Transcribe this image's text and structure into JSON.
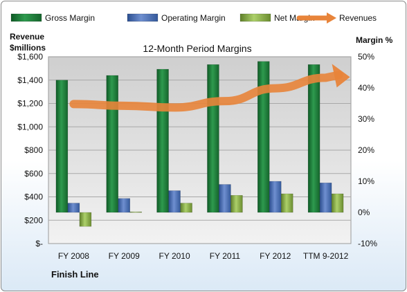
{
  "chart_data": {
    "type": "bar",
    "title": "12-Month Period Margins",
    "categories": [
      "FY 2008",
      "FY 2009",
      "FY 2010",
      "FY 2011",
      "FY 2012",
      "TTM 9-2012"
    ],
    "series": [
      {
        "name": "Gross Margin",
        "axis": "right",
        "values": [
          42.5,
          44.0,
          46.0,
          47.5,
          48.5,
          47.5
        ],
        "color": "#1f7a3a"
      },
      {
        "name": "Operating Margin",
        "axis": "right",
        "values": [
          3.0,
          4.5,
          7.0,
          9.0,
          10.0,
          9.5
        ],
        "color": "#4f6fb0"
      },
      {
        "name": "Net Margin",
        "axis": "right",
        "values": [
          -4.5,
          0.2,
          3.0,
          5.5,
          6.0,
          6.0
        ],
        "color": "#8db04a"
      },
      {
        "name": "Revenues",
        "type": "line",
        "axis": "left",
        "values": [
          1195,
          1180,
          1165,
          1220,
          1330,
          1420
        ],
        "color": "#e8843a"
      }
    ],
    "left_axis": {
      "label_line1": "Revenue",
      "label_line2": "$millions",
      "range": [
        0,
        1600
      ],
      "ticks": [
        "$-",
        "$200",
        "$400",
        "$600",
        "$800",
        "$1,000",
        "$1,200",
        "$1,400",
        "$1,600"
      ]
    },
    "right_axis": {
      "label": "Margin %",
      "range": [
        -10,
        50
      ],
      "ticks": [
        "-10%",
        "0%",
        "10%",
        "20%",
        "30%",
        "40%",
        "50%"
      ]
    },
    "legend_position": "top",
    "grid": true,
    "footer": "Finish Line"
  }
}
